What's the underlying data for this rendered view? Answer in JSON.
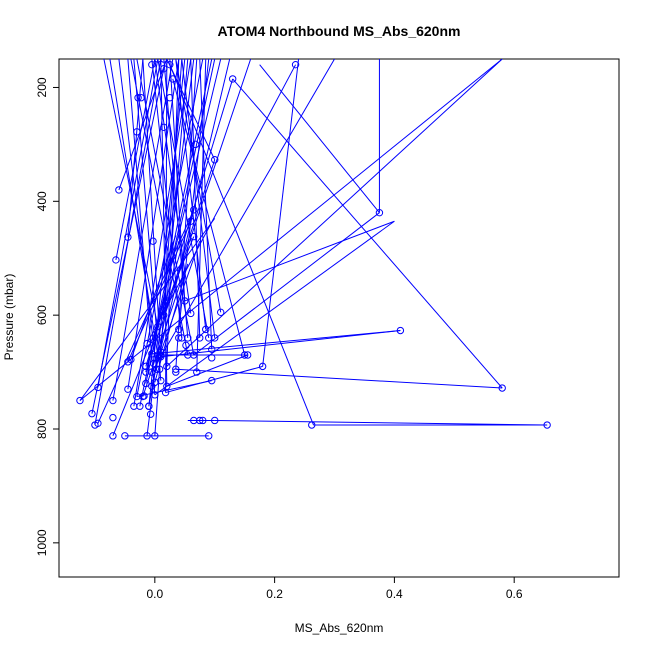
{
  "chart_data": {
    "type": "scatter",
    "title": "ATOM4 Northbound MS_Abs_620nm",
    "xlabel": "MS_Abs_620nm",
    "ylabel": "Pressure (mbar)",
    "xlim": [
      -0.16,
      0.775
    ],
    "ylim": [
      1060,
      150
    ],
    "y_reversed": true,
    "grid": false,
    "legend": "none",
    "color": "#0000ff",
    "x_ticks": [
      {
        "value": 0.0,
        "label": "0.0"
      },
      {
        "value": 0.2,
        "label": "0.2"
      },
      {
        "value": 0.4,
        "label": "0.4"
      },
      {
        "value": 0.6,
        "label": "0.6"
      }
    ],
    "y_ticks": [
      {
        "value": 200,
        "label": "200"
      },
      {
        "value": 400,
        "label": "400"
      },
      {
        "value": 600,
        "label": "600"
      },
      {
        "value": 800,
        "label": "800"
      },
      {
        "value": 1000,
        "label": "1000"
      }
    ],
    "points": [
      [
        -0.125,
        750
      ],
      [
        -0.105,
        773
      ],
      [
        -0.1,
        793
      ],
      [
        -0.095,
        790
      ],
      [
        -0.095,
        727
      ],
      [
        -0.07,
        750
      ],
      [
        -0.07,
        812
      ],
      [
        -0.07,
        780
      ],
      [
        -0.065,
        503
      ],
      [
        -0.06,
        380
      ],
      [
        -0.05,
        812
      ],
      [
        -0.045,
        730
      ],
      [
        -0.045,
        682
      ],
      [
        -0.045,
        463
      ],
      [
        -0.04,
        678
      ],
      [
        -0.035,
        760
      ],
      [
        -0.03,
        743
      ],
      [
        -0.03,
        278
      ],
      [
        -0.028,
        218
      ],
      [
        -0.025,
        760
      ],
      [
        -0.023,
        218
      ],
      [
        -0.02,
        743
      ],
      [
        -0.018,
        742
      ],
      [
        -0.015,
        720
      ],
      [
        -0.015,
        700
      ],
      [
        -0.015,
        690
      ],
      [
        -0.013,
        650
      ],
      [
        -0.013,
        812
      ],
      [
        -0.01,
        760
      ],
      [
        -0.01,
        760
      ],
      [
        -0.007,
        774
      ],
      [
        -0.005,
        725
      ],
      [
        -0.005,
        700
      ],
      [
        -0.005,
        668
      ],
      [
        -0.005,
        160
      ],
      [
        -0.003,
        470
      ],
      [
        -0.002,
        685
      ],
      [
        0.0,
        812
      ],
      [
        0.0,
        740
      ],
      [
        0.0,
        718
      ],
      [
        0.003,
        695
      ],
      [
        0.005,
        670
      ],
      [
        0.005,
        620
      ],
      [
        0.005,
        150
      ],
      [
        0.008,
        695
      ],
      [
        0.01,
        715
      ],
      [
        0.01,
        673
      ],
      [
        0.01,
        665
      ],
      [
        0.01,
        670
      ],
      [
        0.015,
        150
      ],
      [
        0.015,
        167
      ],
      [
        0.015,
        270
      ],
      [
        0.015,
        600
      ],
      [
        0.018,
        736
      ],
      [
        0.02,
        725
      ],
      [
        0.02,
        690
      ],
      [
        0.02,
        575
      ],
      [
        0.025,
        160
      ],
      [
        0.025,
        218
      ],
      [
        0.035,
        695
      ],
      [
        0.04,
        625
      ],
      [
        0.04,
        640
      ],
      [
        0.045,
        640
      ],
      [
        0.05,
        575
      ],
      [
        0.052,
        653
      ],
      [
        0.055,
        640
      ],
      [
        0.055,
        670
      ],
      [
        0.06,
        597
      ],
      [
        0.065,
        670
      ],
      [
        0.065,
        462
      ],
      [
        0.065,
        415
      ],
      [
        0.068,
        300
      ],
      [
        0.07,
        700
      ],
      [
        0.075,
        640
      ],
      [
        0.075,
        785
      ],
      [
        0.08,
        785
      ],
      [
        0.085,
        625
      ],
      [
        0.09,
        640
      ],
      [
        0.095,
        660
      ],
      [
        0.095,
        675
      ],
      [
        0.095,
        715
      ],
      [
        0.1,
        640
      ],
      [
        0.1,
        327
      ],
      [
        0.11,
        595
      ],
      [
        0.13,
        185
      ],
      [
        0.15,
        670
      ],
      [
        0.155,
        670
      ],
      [
        0.18,
        690
      ],
      [
        0.235,
        160
      ],
      [
        0.262,
        793
      ],
      [
        0.375,
        420
      ],
      [
        0.41,
        627
      ],
      [
        0.58,
        728
      ],
      [
        0.655,
        793
      ],
      [
        0.1,
        785
      ],
      [
        0.09,
        812
      ],
      [
        0.065,
        785
      ],
      [
        0.035,
        700
      ],
      [
        0.03,
        185
      ],
      [
        0.06,
        435
      ]
    ],
    "connections": [
      [
        -0.065,
        503,
        0.0,
        150
      ],
      [
        -0.06,
        380,
        0.02,
        150
      ],
      [
        -0.095,
        727,
        0.005,
        150
      ],
      [
        -0.1,
        793,
        0.01,
        150
      ],
      [
        -0.105,
        773,
        0.015,
        167
      ],
      [
        -0.07,
        750,
        0.03,
        150
      ],
      [
        -0.045,
        730,
        0.04,
        150
      ],
      [
        -0.045,
        463,
        -0.02,
        150
      ],
      [
        -0.035,
        760,
        0.06,
        150
      ],
      [
        -0.03,
        743,
        0.08,
        150
      ],
      [
        -0.025,
        760,
        0.095,
        150
      ],
      [
        -0.015,
        720,
        0.1,
        150
      ],
      [
        -0.015,
        700,
        0.11,
        150
      ],
      [
        -0.013,
        812,
        0.065,
        150
      ],
      [
        -0.01,
        760,
        0.05,
        150
      ],
      [
        -0.005,
        725,
        0.125,
        150
      ],
      [
        -0.005,
        668,
        0.16,
        150
      ],
      [
        0.0,
        812,
        0.045,
        150
      ],
      [
        0.0,
        740,
        -0.045,
        150
      ],
      [
        0.003,
        695,
        -0.06,
        150
      ],
      [
        0.005,
        670,
        -0.075,
        150
      ],
      [
        0.005,
        620,
        -0.085,
        150
      ],
      [
        0.01,
        715,
        -0.035,
        150
      ],
      [
        0.01,
        673,
        -0.02,
        150
      ],
      [
        0.018,
        736,
        0.02,
        150
      ],
      [
        0.02,
        725,
        0.01,
        150
      ],
      [
        0.02,
        690,
        0.04,
        150
      ],
      [
        0.02,
        575,
        0.055,
        150
      ],
      [
        0.035,
        695,
        0.07,
        150
      ],
      [
        0.04,
        625,
        0.09,
        150
      ],
      [
        0.045,
        640,
        -0.005,
        150
      ],
      [
        0.05,
        575,
        0.025,
        150
      ],
      [
        0.055,
        640,
        0.015,
        150
      ],
      [
        0.055,
        670,
        -0.04,
        150
      ],
      [
        0.06,
        597,
        0.0,
        150
      ],
      [
        0.065,
        670,
        -0.03,
        150
      ],
      [
        0.07,
        700,
        0.085,
        150
      ],
      [
        0.075,
        640,
        0.06,
        150
      ],
      [
        0.085,
        625,
        0.035,
        150
      ],
      [
        0.09,
        640,
        0.005,
        150
      ],
      [
        0.095,
        660,
        0.075,
        150
      ],
      [
        0.1,
        640,
        0.045,
        150
      ],
      [
        0.1,
        327,
        0.02,
        150
      ],
      [
        0.11,
        595,
        0.035,
        150
      ],
      [
        -0.015,
        690,
        0.13,
        185
      ],
      [
        -0.013,
        650,
        0.235,
        160
      ],
      [
        -0.005,
        700,
        0.3,
        150
      ],
      [
        -0.125,
        750,
        0.1,
        430
      ],
      [
        -0.095,
        790,
        0.065,
        415
      ],
      [
        -0.07,
        812,
        0.065,
        462
      ],
      [
        -0.045,
        682,
        0.06,
        435
      ],
      [
        -0.04,
        678,
        0.035,
        460
      ],
      [
        -0.02,
        743,
        0.05,
        520
      ],
      [
        -0.01,
        760,
        0.04,
        470
      ],
      [
        0.0,
        718,
        0.055,
        510
      ],
      [
        0.01,
        665,
        0.075,
        470
      ],
      [
        0.015,
        600,
        0.1,
        327
      ],
      [
        0.025,
        160,
        0.265,
        793
      ],
      [
        0.03,
        185,
        0.15,
        670
      ],
      [
        0.13,
        185,
        0.58,
        728
      ],
      [
        0.175,
        160,
        0.375,
        420
      ],
      [
        0.375,
        150,
        0.375,
        420
      ],
      [
        0.375,
        420,
        0.065,
        670
      ],
      [
        -0.005,
        668,
        0.41,
        627
      ],
      [
        0.41,
        627,
        0.01,
        673
      ],
      [
        0.0,
        740,
        0.4,
        435
      ],
      [
        0.4,
        435,
        0.05,
        575
      ],
      [
        0.035,
        695,
        0.58,
        728
      ],
      [
        -0.125,
        750,
        0.58,
        150
      ],
      [
        0.58,
        150,
        0.02,
        690
      ],
      [
        0.1,
        785,
        0.655,
        793
      ],
      [
        0.265,
        793,
        0.655,
        793
      ],
      [
        0.055,
        785,
        0.1,
        785
      ],
      [
        -0.05,
        812,
        0.09,
        812
      ],
      [
        0.018,
        736,
        0.18,
        690
      ],
      [
        0.18,
        690,
        0.24,
        150
      ],
      [
        0.0,
        670,
        0.155,
        670
      ],
      [
        -0.03,
        743,
        0.095,
        715
      ],
      [
        0.02,
        725,
        0.155,
        670
      ]
    ]
  }
}
